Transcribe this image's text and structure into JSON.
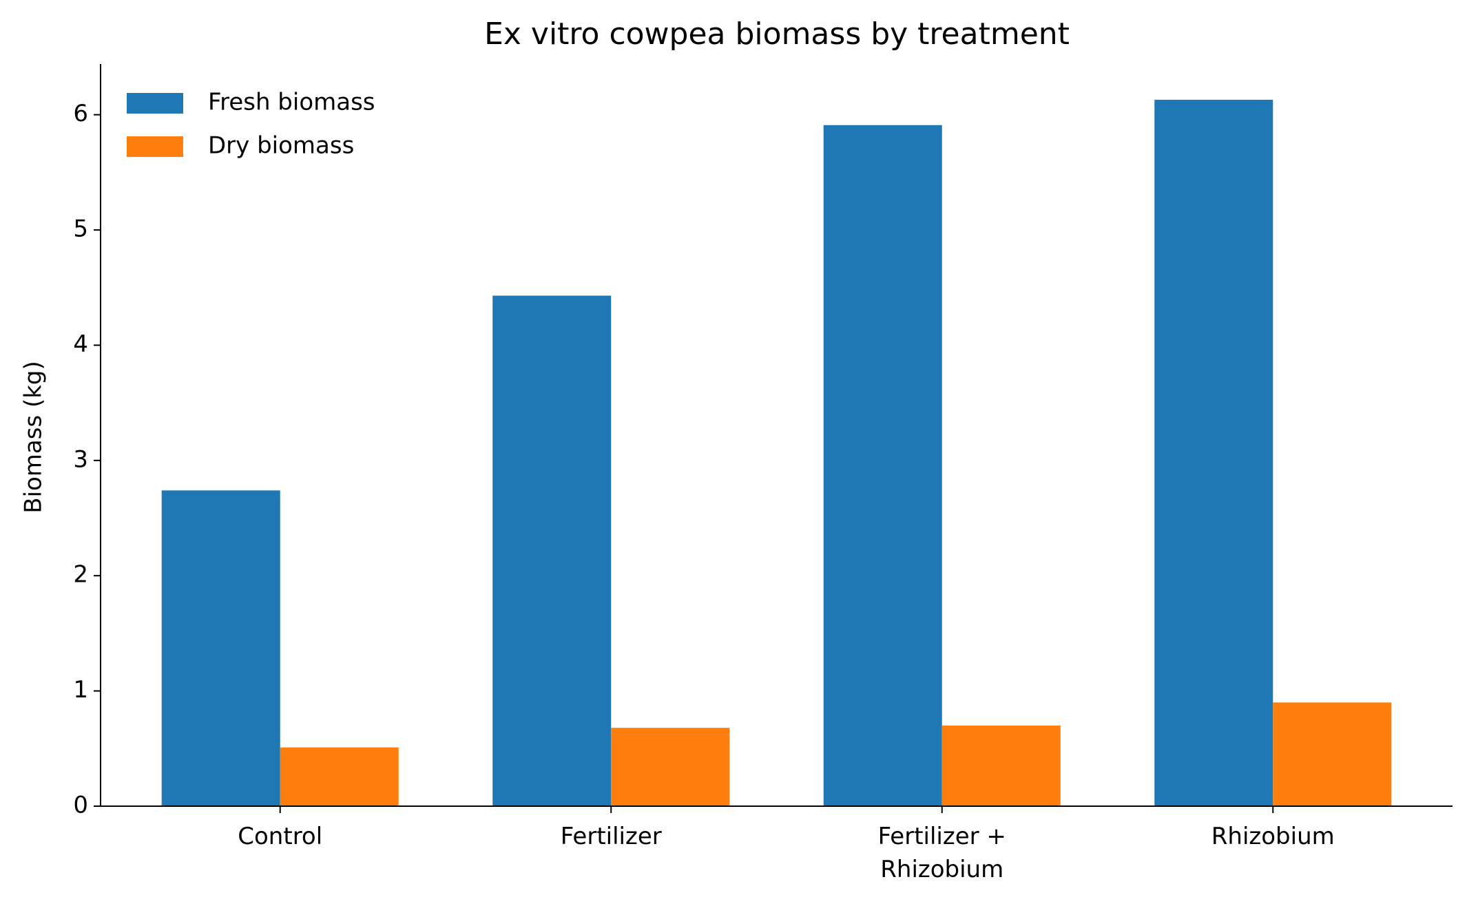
{
  "chart_data": {
    "type": "bar",
    "title": "Ex vitro cowpea biomass by treatment",
    "y_label": "Biomass (kg)",
    "categories": [
      "Control",
      "Fertilizer",
      "Fertilizer + Rhizobium",
      "Rhizobium"
    ],
    "series": [
      {
        "name": "Fresh biomass",
        "color": "#1f77b4",
        "values": [
          2.74,
          4.43,
          5.91,
          6.13
        ]
      },
      {
        "name": "Dry biomass",
        "color": "#ff7f0e",
        "values": [
          0.51,
          0.68,
          0.7,
          0.9
        ]
      }
    ],
    "ylim": [
      0,
      6.44
    ],
    "yticks": [
      0,
      1,
      2,
      3,
      4,
      5,
      6
    ],
    "grid": false,
    "legend": "upper left"
  }
}
